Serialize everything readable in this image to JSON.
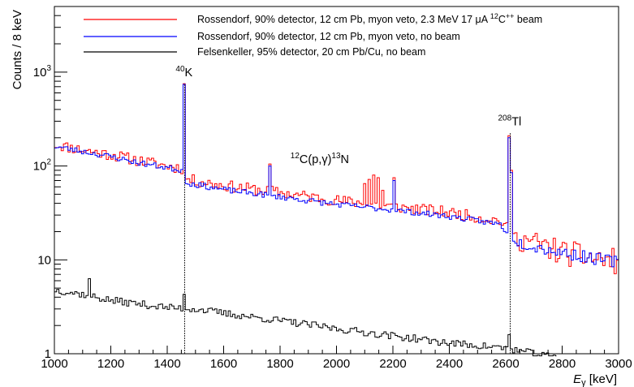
{
  "chart_data": {
    "type": "line",
    "title": "",
    "xlabel": "E",
    "xlabel_sub": "γ",
    "xlabel_unit": " [keV]",
    "ylabel": "Counts / 8 keV",
    "xlim": [
      1000,
      3000
    ],
    "ylim": [
      1,
      5000
    ],
    "yscale": "log",
    "grid": false,
    "legend_position": "top",
    "x_ticks": [
      1000,
      1200,
      1400,
      1600,
      1800,
      2000,
      2200,
      2400,
      2600,
      2800,
      3000
    ],
    "x_tick_labels": [
      "1000",
      "1200",
      "1400",
      "1600",
      "1800",
      "2000",
      "2200",
      "2400",
      "2600",
      "2800",
      "3000"
    ],
    "y_major_ticks": [
      1,
      10,
      100,
      1000
    ],
    "y_tick_labels": [
      {
        "base": "1",
        "exp": ""
      },
      {
        "base": "10",
        "exp": ""
      },
      {
        "base": "10",
        "exp": "2"
      },
      {
        "base": "10",
        "exp": "3"
      }
    ],
    "bin_width_keV": 8,
    "series": [
      {
        "name": "Rossendorf, 90% detector, 12 cm Pb, myon veto, 2.3 MeV 17 μA ",
        "name_sup_iso": "12",
        "name_ion": "C",
        "name_sup_charge": "++",
        "name_tail": " beam",
        "color": "#ff0000",
        "continuum": [
          [
            1000,
            170
          ],
          [
            1100,
            148
          ],
          [
            1200,
            132
          ],
          [
            1300,
            114
          ],
          [
            1400,
            100
          ],
          [
            1455,
            94
          ],
          [
            1470,
            72
          ],
          [
            1600,
            62
          ],
          [
            1800,
            52
          ],
          [
            2000,
            43
          ],
          [
            2200,
            37
          ],
          [
            2400,
            32
          ],
          [
            2580,
            26
          ],
          [
            2630,
            18
          ],
          [
            2700,
            15
          ],
          [
            2800,
            12
          ],
          [
            2900,
            10.5
          ],
          [
            3000,
            9.5
          ]
        ],
        "peaks": [
          {
            "x": 1460,
            "value": 750
          },
          {
            "x": 1764,
            "value": 105
          },
          {
            "x": 2100,
            "value": 65
          },
          {
            "x": 2116,
            "value": 72
          },
          {
            "x": 2132,
            "value": 80
          },
          {
            "x": 2148,
            "value": 75
          },
          {
            "x": 2164,
            "value": 55
          },
          {
            "x": 2204,
            "value": 75
          },
          {
            "x": 2614,
            "value": 210
          },
          {
            "x": 2622,
            "value": 90
          }
        ],
        "noise": 0.14,
        "noise_high": 0.32,
        "seed": 11
      },
      {
        "name": "Rossendorf, 90% detector, 12 cm Pb, myon veto, no beam",
        "color": "#0000ff",
        "continuum": [
          [
            1000,
            162
          ],
          [
            1100,
            143
          ],
          [
            1200,
            126
          ],
          [
            1300,
            108
          ],
          [
            1400,
            96
          ],
          [
            1455,
            90
          ],
          [
            1470,
            66
          ],
          [
            1600,
            56
          ],
          [
            1800,
            47
          ],
          [
            2000,
            39
          ],
          [
            2200,
            34
          ],
          [
            2400,
            29
          ],
          [
            2580,
            24
          ],
          [
            2630,
            16
          ],
          [
            2700,
            14
          ],
          [
            2800,
            12
          ],
          [
            2900,
            10.5
          ],
          [
            3000,
            9.5
          ]
        ],
        "peaks": [
          {
            "x": 1460,
            "value": 740
          },
          {
            "x": 1764,
            "value": 100
          },
          {
            "x": 2204,
            "value": 70
          },
          {
            "x": 2614,
            "value": 200
          },
          {
            "x": 2622,
            "value": 85
          }
        ],
        "noise": 0.07,
        "noise_high": 0.15,
        "seed": 23
      },
      {
        "name": "Felsenkeller, 95% detector, 20 cm Pb/Cu, no beam",
        "color": "#000000",
        "continuum": [
          [
            1000,
            4.8
          ],
          [
            1100,
            4.3
          ],
          [
            1200,
            3.7
          ],
          [
            1300,
            3.4
          ],
          [
            1400,
            3.1
          ],
          [
            1500,
            3.0
          ],
          [
            1600,
            2.7
          ],
          [
            1800,
            2.25
          ],
          [
            2000,
            1.85
          ],
          [
            2200,
            1.55
          ],
          [
            2400,
            1.3
          ],
          [
            2600,
            1.15
          ],
          [
            2700,
            1.0
          ],
          [
            2780,
            0.9
          ]
        ],
        "peaks": [
          {
            "x": 1124,
            "value": 6.3
          },
          {
            "x": 1460,
            "value": 4.3
          },
          {
            "x": 2614,
            "value": 1.6
          }
        ],
        "noise": 0.09,
        "noise_high": 0.09,
        "x_end": 2780,
        "seed": 37
      }
    ],
    "annotations": [
      {
        "sup": "40",
        "text": "K",
        "x": 1460,
        "y": 800
      },
      {
        "sup": "208",
        "text": "Tl",
        "x": 2614,
        "y": 240
      },
      {
        "sup": "12",
        "text": "C(p,γ)",
        "sup2": "13",
        "text2": "N",
        "x": 2090,
        "y": 95
      }
    ]
  }
}
